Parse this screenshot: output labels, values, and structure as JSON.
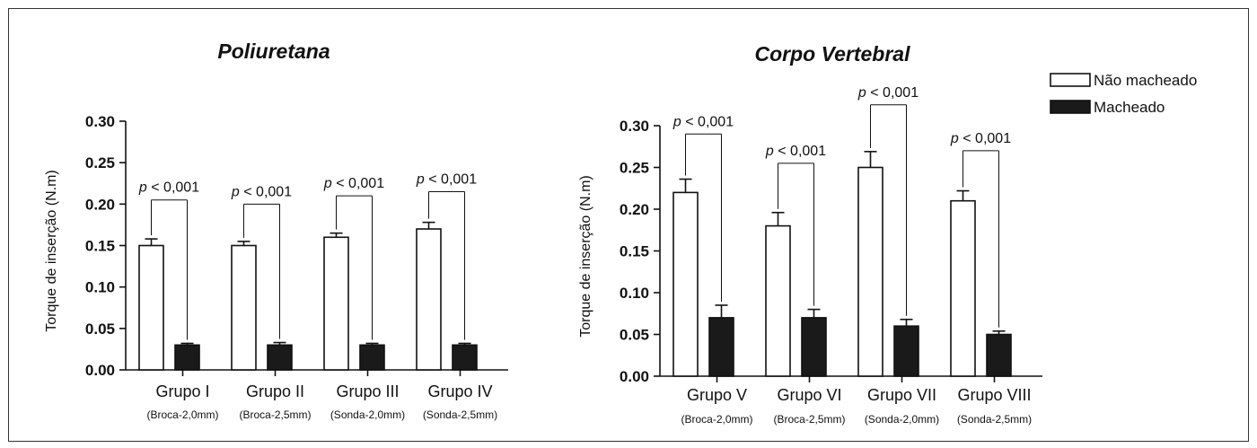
{
  "colors": {
    "bar_unmacheado": "#ffffff",
    "bar_macheado": "#1a1a1a",
    "stroke": "#111111"
  },
  "legend": {
    "items": [
      {
        "name": "Não macheado",
        "color": "#ffffff"
      },
      {
        "name": "Macheado",
        "color": "#1a1a1a"
      }
    ]
  },
  "chart_data": [
    {
      "type": "bar",
      "title": "Poliuretana",
      "ylabel": "Torque de inserção (N.m)",
      "ylim": [
        0,
        0.3
      ],
      "yticks": [
        "0.00",
        "0.05",
        "0.10",
        "0.15",
        "0.20",
        "0.25",
        "0.30"
      ],
      "categories": [
        "Grupo I",
        "Grupo II",
        "Grupo III",
        "Grupo IV"
      ],
      "subcategories": [
        "(Broca-2,0mm)",
        "(Broca-2,5mm)",
        "(Sonda-2,0mm)",
        "(Sonda-2,5mm)"
      ],
      "series": [
        {
          "name": "Não macheado",
          "values": [
            0.15,
            0.15,
            0.16,
            0.17
          ],
          "errors": [
            0.008,
            0.005,
            0.005,
            0.008
          ]
        },
        {
          "name": "Macheado",
          "values": [
            0.03,
            0.03,
            0.03,
            0.03
          ],
          "errors": [
            0.002,
            0.003,
            0.002,
            0.002
          ]
        }
      ],
      "annotations": [
        {
          "p": "p",
          "text": " < 0,001",
          "y": 0.205
        },
        {
          "p": "p",
          "text": " < 0,001",
          "y": 0.2
        },
        {
          "p": "p",
          "text": " < 0,001",
          "y": 0.21
        },
        {
          "p": "p",
          "text": " < 0,001",
          "y": 0.215
        }
      ]
    },
    {
      "type": "bar",
      "title": "Corpo Vertebral",
      "ylabel": "Torque de inserção (N.m)",
      "ylim": [
        0,
        0.3
      ],
      "yticks": [
        "0.00",
        "0.05",
        "0.10",
        "0.15",
        "0.20",
        "0.25",
        "0.30"
      ],
      "categories": [
        "Grupo V",
        "Grupo VI",
        "Grupo VII",
        "Grupo VIII"
      ],
      "subcategories": [
        "(Broca-2,0mm)",
        "(Broca-2,5mm)",
        "(Sonda-2,0mm)",
        "(Sonda-2,5mm)"
      ],
      "series": [
        {
          "name": "Não macheado",
          "values": [
            0.22,
            0.18,
            0.25,
            0.21
          ],
          "errors": [
            0.016,
            0.016,
            0.019,
            0.012
          ]
        },
        {
          "name": "Macheado",
          "values": [
            0.07,
            0.07,
            0.06,
            0.05
          ],
          "errors": [
            0.015,
            0.01,
            0.008,
            0.004
          ]
        }
      ],
      "annotations": [
        {
          "p": "p",
          "text": " < 0,001",
          "y": 0.29
        },
        {
          "p": "p",
          "text": " < 0,001",
          "y": 0.255
        },
        {
          "p": "p",
          "text": " < 0,001",
          "y": 0.325
        },
        {
          "p": "p",
          "text": " < 0,001",
          "y": 0.27
        }
      ]
    }
  ]
}
